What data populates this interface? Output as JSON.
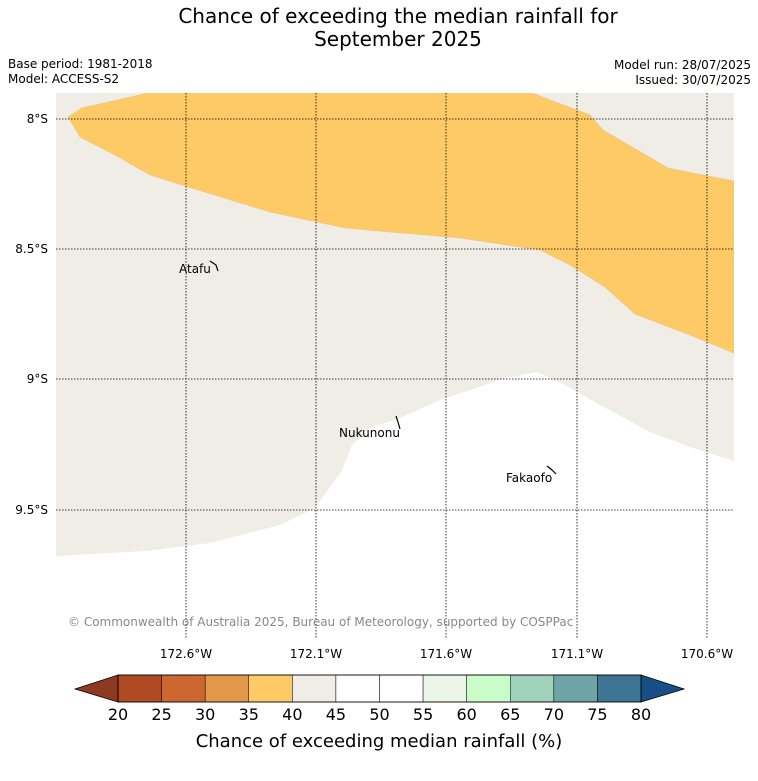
{
  "title_line1": "Chance of exceeding the median rainfall for",
  "title_line2": "September 2025",
  "meta": {
    "base_period": "Base period: 1981-2018",
    "model": "Model: ACCESS-S2",
    "model_run": "Model run: 28/07/2025",
    "issued": "Issued: 30/07/2025"
  },
  "map": {
    "lat_labels": [
      "8°S",
      "8.5°S",
      "9°S",
      "9.5°S"
    ],
    "lon_labels": [
      "172.6°W",
      "172.1°W",
      "171.6°W",
      "171.1°W",
      "170.6°W"
    ],
    "places": [
      "Atafu",
      "Nukunonu",
      "Fakaofo"
    ],
    "copyright": "© Commonwealth of Australia 2025, Bureau of Meteorology, supported by COSPPac"
  },
  "colorbar": {
    "ticks": [
      "20",
      "25",
      "30",
      "35",
      "40",
      "45",
      "50",
      "55",
      "60",
      "65",
      "70",
      "75",
      "80"
    ],
    "colors": [
      "#b04a23",
      "#cc672f",
      "#e2974a",
      "#fdca66",
      "#f0ece6",
      "#ffffff",
      "#ffffff",
      "#eaf5e8",
      "#c9fcc8",
      "#9fd1bb",
      "#6ea4a5",
      "#3e7595"
    ],
    "under_color": "#8e3a20",
    "over_color": "#154f86",
    "label": "Chance of exceeding median rainfall (%)"
  }
}
